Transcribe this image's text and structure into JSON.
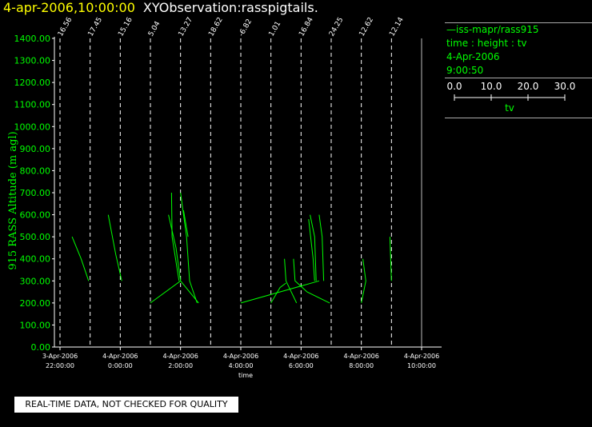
{
  "header": {
    "timestamp": "4-apr-2006,10:00:00",
    "title": "XYObservation:rasspigtails."
  },
  "legend": {
    "series_label": "iss-mapr/rass915",
    "line2": "time : height : tv",
    "line3": "4-Apr-2006",
    "line4": "9:00:50",
    "scale_ticks": [
      "0.0",
      "10.0",
      "20.0",
      "30.0"
    ],
    "scale_label": "tv"
  },
  "notice": "REAL-TIME DATA, NOT CHECKED FOR QUALITY",
  "colors": {
    "background": "#000000",
    "axis": "#ffffff",
    "data": "#00ff00",
    "timestamp": "#ffff00"
  },
  "chart_data": {
    "type": "line",
    "ylabel": "915 RASS Altitude (m agl)",
    "xlabel": "time",
    "ylim": [
      0,
      1400
    ],
    "yticks": [
      "0.00",
      "100.00",
      "200.00",
      "300.00",
      "400.00",
      "500.00",
      "600.00",
      "700.00",
      "800.00",
      "900.00",
      "1000.00",
      "1100.00",
      "1200.00",
      "1300.00",
      "1400.00"
    ],
    "xlim": [
      -2,
      10
    ],
    "xticks": [
      {
        "x": -2,
        "date": "3-Apr-2006",
        "time": "22:00:00"
      },
      {
        "x": 0,
        "date": "4-Apr-2006",
        "time": "0:00:00"
      },
      {
        "x": 2,
        "date": "4-Apr-2006",
        "time": "2:00:00"
      },
      {
        "x": 4,
        "date": "4-Apr-2006",
        "time": "4:00:00"
      },
      {
        "x": 6,
        "date": "4-Apr-2006",
        "time": "6:00:00"
      },
      {
        "x": 8,
        "date": "4-Apr-2006",
        "time": "8:00:00"
      },
      {
        "x": 10,
        "date": "4-Apr-2006",
        "time": "10:00:00"
      }
    ],
    "profiles": [
      {
        "x": -2,
        "label": "16.56"
      },
      {
        "x": -1,
        "label": "17.45"
      },
      {
        "x": 0,
        "label": "15.16"
      },
      {
        "x": 1,
        "label": "5.04"
      },
      {
        "x": 2,
        "label": "13.27"
      },
      {
        "x": 3,
        "label": "18.62"
      },
      {
        "x": 4,
        "label": "-6.82"
      },
      {
        "x": 5,
        "label": "1.01"
      },
      {
        "x": 6,
        "label": "16.84"
      },
      {
        "x": 7,
        "label": "24.25"
      },
      {
        "x": 8,
        "label": "12.62"
      },
      {
        "x": 9,
        "label": "12.14"
      },
      {
        "x": 10,
        "label": ""
      }
    ],
    "series": [
      {
        "points": [
          [
            -1.6,
            500
          ],
          [
            -1.3,
            400
          ],
          [
            -1.05,
            300
          ]
        ]
      },
      {
        "points": [
          [
            -0.4,
            600
          ],
          [
            -0.15,
            420
          ],
          [
            0.05,
            300
          ]
        ]
      },
      {
        "points": [
          [
            1.0,
            200
          ],
          [
            2.0,
            300
          ],
          [
            2.6,
            200
          ]
        ]
      },
      {
        "points": [
          [
            1.7,
            700
          ],
          [
            1.72,
            500
          ],
          [
            1.95,
            300
          ]
        ]
      },
      {
        "points": [
          [
            1.6,
            600
          ],
          [
            1.85,
            450
          ],
          [
            2.0,
            300
          ]
        ]
      },
      {
        "points": [
          [
            2.0,
            700
          ],
          [
            2.2,
            500
          ],
          [
            2.3,
            300
          ],
          [
            2.55,
            200
          ]
        ]
      },
      {
        "points": [
          [
            2.1,
            620
          ],
          [
            2.25,
            500
          ]
        ]
      },
      {
        "points": [
          [
            4.0,
            200
          ],
          [
            6.6,
            300
          ]
        ]
      },
      {
        "points": [
          [
            5.0,
            200
          ],
          [
            5.3,
            270
          ],
          [
            5.5,
            290
          ]
        ]
      },
      {
        "points": [
          [
            5.45,
            400
          ],
          [
            5.5,
            300
          ],
          [
            5.85,
            200
          ]
        ]
      },
      {
        "points": [
          [
            5.75,
            400
          ],
          [
            5.8,
            300
          ],
          [
            6.2,
            250
          ],
          [
            6.95,
            200
          ]
        ]
      },
      {
        "points": [
          [
            6.3,
            600
          ],
          [
            6.45,
            500
          ],
          [
            6.5,
            300
          ]
        ]
      },
      {
        "points": [
          [
            6.6,
            600
          ],
          [
            6.7,
            500
          ],
          [
            6.75,
            300
          ]
        ]
      },
      {
        "points": [
          [
            6.25,
            580
          ],
          [
            6.4,
            400
          ],
          [
            6.45,
            300
          ]
        ]
      },
      {
        "points": [
          [
            8.0,
            200
          ],
          [
            8.15,
            300
          ],
          [
            8.05,
            400
          ]
        ]
      },
      {
        "points": [
          [
            8.95,
            500
          ],
          [
            9.0,
            300
          ]
        ]
      }
    ]
  }
}
